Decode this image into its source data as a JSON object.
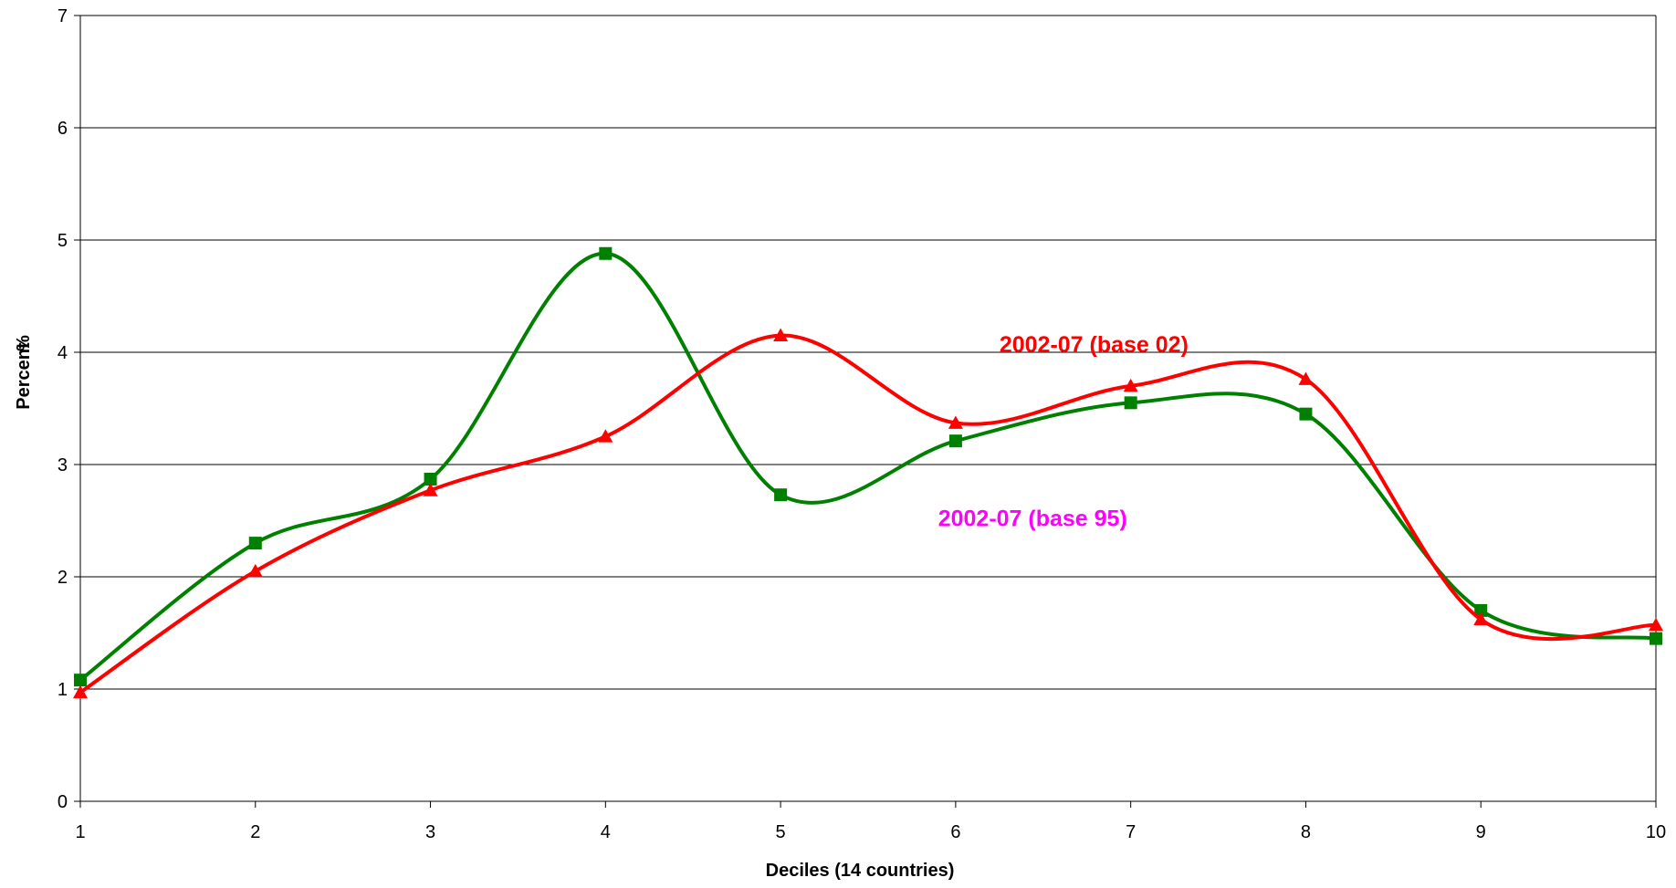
{
  "chart_data": {
    "type": "line",
    "xlabel": "Deciles (14 countries)",
    "ylabel": "Percent",
    "ylabel_unit": "%",
    "x": [
      1,
      2,
      3,
      4,
      5,
      6,
      7,
      8,
      9,
      10
    ],
    "xlim": [
      1,
      10
    ],
    "ylim": [
      0,
      7
    ],
    "yticks": [
      0,
      1,
      2,
      3,
      4,
      5,
      6,
      7
    ],
    "grid": "horizontal",
    "smoothed": true,
    "series": [
      {
        "name": "2002-07 (base 02)",
        "color": "#ff0000",
        "marker": "triangle",
        "values": [
          0.97,
          2.05,
          2.77,
          3.25,
          4.15,
          3.37,
          3.7,
          3.76,
          1.62,
          1.57
        ]
      },
      {
        "name": "",
        "color": "#008000",
        "marker": "square",
        "values": [
          1.08,
          2.3,
          2.87,
          4.88,
          2.73,
          3.21,
          3.55,
          3.45,
          1.7,
          1.45
        ]
      }
    ],
    "annotations": [
      {
        "text": "2002-07 (base 02)",
        "color": "#ff0000",
        "x": 6.25,
        "y": 4.0
      },
      {
        "text": "2002-07 (base 95)",
        "color": "#ff00ff",
        "x": 5.9,
        "y": 2.45
      }
    ]
  }
}
